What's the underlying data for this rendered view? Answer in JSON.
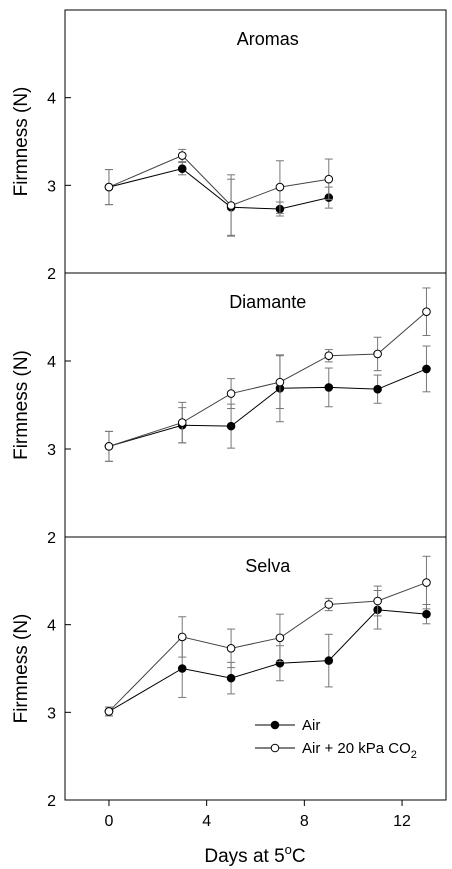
{
  "chart_data": [
    {
      "type": "line",
      "title": "Aromas",
      "ylabel": "Firmness (N)",
      "ylim": [
        2,
        5
      ],
      "yticks": [
        2,
        3,
        4
      ],
      "series": [
        {
          "name": "Air",
          "marker": "filled-circle",
          "x": [
            0,
            3,
            5,
            7,
            9
          ],
          "y": [
            2.98,
            3.19,
            2.75,
            2.73,
            2.86
          ],
          "err": [
            0.2,
            0.07,
            0.32,
            0.08,
            0.12
          ]
        },
        {
          "name": "Air + 20 kPa CO2",
          "marker": "open-circle",
          "x": [
            0,
            3,
            5,
            7,
            9
          ],
          "y": [
            2.98,
            3.34,
            2.77,
            2.98,
            3.07
          ],
          "err": [
            0.2,
            0.07,
            0.35,
            0.3,
            0.23
          ]
        }
      ]
    },
    {
      "type": "line",
      "title": "Diamante",
      "ylabel": "Firmness (N)",
      "ylim": [
        2,
        5
      ],
      "yticks": [
        2,
        3,
        4
      ],
      "series": [
        {
          "name": "Air",
          "marker": "filled-circle",
          "x": [
            0,
            3,
            5,
            7,
            9,
            11,
            13
          ],
          "y": [
            3.03,
            3.27,
            3.26,
            3.69,
            3.7,
            3.68,
            3.91
          ],
          "err": [
            0.17,
            0.2,
            0.25,
            0.38,
            0.22,
            0.16,
            0.26
          ]
        },
        {
          "name": "Air + 20 kPa CO2",
          "marker": "open-circle",
          "x": [
            0,
            3,
            5,
            7,
            9,
            11,
            13
          ],
          "y": [
            3.03,
            3.3,
            3.63,
            3.76,
            4.06,
            4.08,
            4.56
          ],
          "err": [
            0.17,
            0.23,
            0.17,
            0.3,
            0.07,
            0.19,
            0.27
          ]
        }
      ]
    },
    {
      "type": "line",
      "title": "Selva",
      "xlabel": "Days at 5°C",
      "ylabel": "Firmness (N)",
      "xlim": [
        -1.8,
        13.8
      ],
      "xticks": [
        0,
        4,
        8,
        12
      ],
      "ylim": [
        2,
        5
      ],
      "yticks": [
        2,
        3,
        4
      ],
      "series": [
        {
          "name": "Air",
          "marker": "filled-circle",
          "x": [
            0,
            3,
            5,
            7,
            9,
            11,
            13
          ],
          "y": [
            3.01,
            3.5,
            3.39,
            3.56,
            3.59,
            4.17,
            4.12
          ],
          "err": [
            0.05,
            0.33,
            0.18,
            0.2,
            0.3,
            0.22,
            0.11
          ]
        },
        {
          "name": "Air + 20 kPa CO2",
          "marker": "open-circle",
          "x": [
            0,
            3,
            5,
            7,
            9,
            11,
            13
          ],
          "y": [
            3.01,
            3.86,
            3.73,
            3.85,
            4.23,
            4.27,
            4.48
          ],
          "err": [
            0.05,
            0.23,
            0.22,
            0.27,
            0.07,
            0.17,
            0.3
          ]
        }
      ]
    }
  ],
  "x_axis": {
    "label_prefix": "Days at 5",
    "label_degree": "o",
    "label_suffix": "C",
    "xlim": [
      -1.8,
      13.8
    ],
    "ticks": [
      0,
      4,
      8,
      12
    ]
  },
  "legend": {
    "placement": "lower-right of bottom panel",
    "air_label": "Air",
    "co2_label_prefix": "Air + 20 kPa CO",
    "co2_label_sub": "2"
  }
}
